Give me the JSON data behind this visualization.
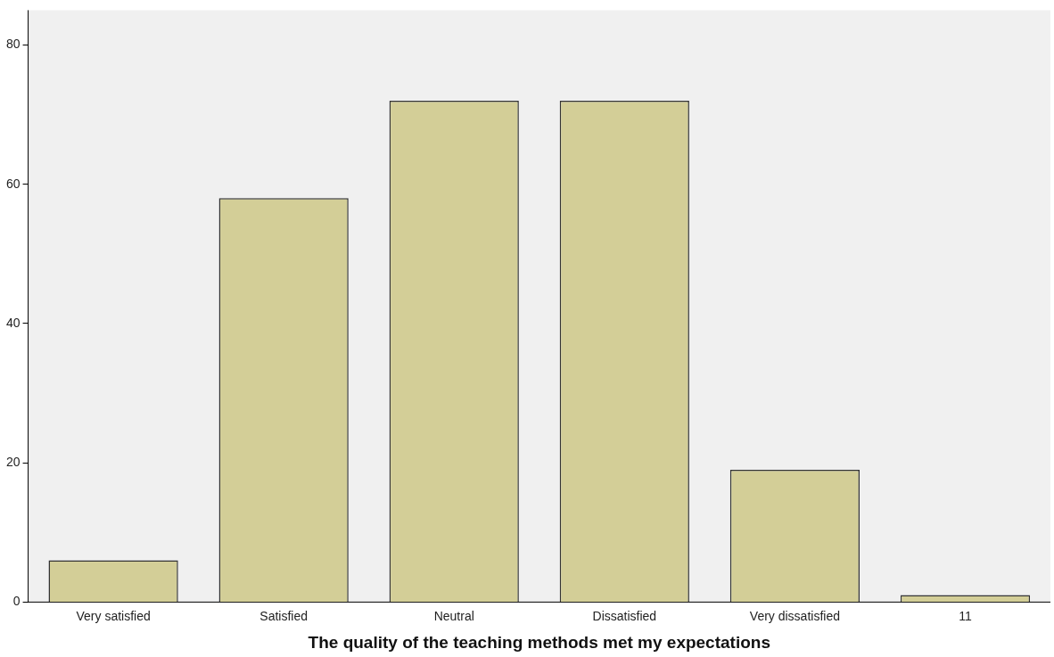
{
  "chart_data": {
    "type": "bar",
    "xlabel": "The quality of the teaching methods met my expectations",
    "categories": [
      "Very satisfied",
      "Satisfied",
      "Neutral",
      "Dissatisfied",
      "Very dissatisfied",
      "11"
    ],
    "values": [
      6,
      58,
      72,
      72,
      19,
      1
    ],
    "color": "#d3ce97",
    "ylim": [
      0,
      85
    ],
    "yticks": [
      0,
      20,
      40,
      60,
      80
    ],
    "grid": false,
    "legend": false
  }
}
